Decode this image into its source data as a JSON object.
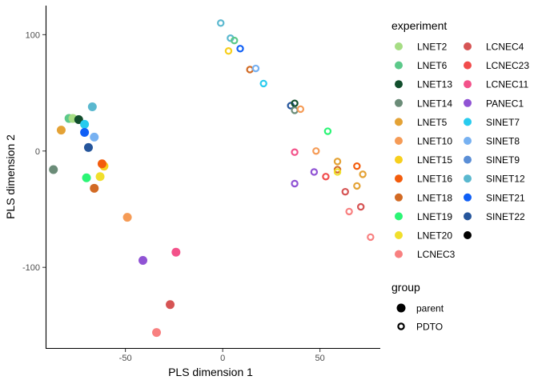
{
  "chart_data": {
    "type": "scatter",
    "title": "",
    "xlabel": "PLS dimension 1",
    "ylabel": "PLS dimension 2",
    "xlim": [
      -91,
      81
    ],
    "ylim": [
      -170,
      125
    ],
    "xticks": [
      -50,
      0,
      50
    ],
    "yticks": [
      100,
      0,
      -100
    ],
    "grid": false,
    "legend_position": "right",
    "legend": {
      "experiment_title": "experiment",
      "group_title": "group",
      "experiments": [
        {
          "name": "LNET2",
          "color": "#a6dd84"
        },
        {
          "name": "LNET6",
          "color": "#5cc98a"
        },
        {
          "name": "LNET13",
          "color": "#114e2c"
        },
        {
          "name": "LNET14",
          "color": "#6b8c78"
        },
        {
          "name": "LNET5",
          "color": "#e4a235"
        },
        {
          "name": "LNET10",
          "color": "#f59b56"
        },
        {
          "name": "LNET15",
          "color": "#f7cf1d"
        },
        {
          "name": "LNET16",
          "color": "#f35c0c"
        },
        {
          "name": "LNET18",
          "color": "#d26a24"
        },
        {
          "name": "LNET19",
          "color": "#2bf575"
        },
        {
          "name": "LNET20",
          "color": "#f1df2c"
        },
        {
          "name": "LCNEC3",
          "color": "#f88080"
        },
        {
          "name": "LCNEC4",
          "color": "#d65454"
        },
        {
          "name": "LCNEC23",
          "color": "#f14c4c"
        },
        {
          "name": "LCNEC11",
          "color": "#f3528a"
        },
        {
          "name": "PANEC1",
          "color": "#9053d4"
        },
        {
          "name": "SINET7",
          "color": "#28cbee"
        },
        {
          "name": "SINET8",
          "color": "#77b1f1"
        },
        {
          "name": "SINET9",
          "color": "#5a8ed6"
        },
        {
          "name": "SINET12",
          "color": "#5ab8cf"
        },
        {
          "name": "SINET21",
          "color": "#0f5ff6"
        },
        {
          "name": "SINET22",
          "color": "#25559b"
        },
        {
          "name": "",
          "color": "#000000"
        }
      ],
      "groups": [
        {
          "name": "parent",
          "shape": "filled"
        },
        {
          "name": "PDTO",
          "shape": "open"
        }
      ]
    },
    "points": [
      {
        "x": -87,
        "y": -16,
        "experiment": "LNET14",
        "group": "parent"
      },
      {
        "x": -83,
        "y": 18,
        "experiment": "LNET5",
        "group": "parent"
      },
      {
        "x": -79,
        "y": 28,
        "experiment": "LNET6",
        "group": "parent"
      },
      {
        "x": -77,
        "y": 28,
        "experiment": "LNET2",
        "group": "parent"
      },
      {
        "x": -74,
        "y": 27,
        "experiment": "LNET13",
        "group": "parent"
      },
      {
        "x": -71,
        "y": 23,
        "experiment": "SINET7",
        "group": "parent"
      },
      {
        "x": -71,
        "y": 16,
        "experiment": "SINET21",
        "group": "parent"
      },
      {
        "x": -70,
        "y": -23,
        "experiment": "LNET19",
        "group": "parent"
      },
      {
        "x": -69,
        "y": 3,
        "experiment": "SINET22",
        "group": "parent"
      },
      {
        "x": -67,
        "y": 38,
        "experiment": "SINET12",
        "group": "parent"
      },
      {
        "x": -66,
        "y": 12,
        "experiment": "SINET8",
        "group": "parent"
      },
      {
        "x": -66,
        "y": -32,
        "experiment": "LNET18",
        "group": "parent"
      },
      {
        "x": -63,
        "y": -22,
        "experiment": "LNET20",
        "group": "parent"
      },
      {
        "x": -61,
        "y": -13,
        "experiment": "LNET15",
        "group": "parent"
      },
      {
        "x": -62,
        "y": -11,
        "experiment": "LNET16",
        "group": "parent"
      },
      {
        "x": -49,
        "y": -57,
        "experiment": "LNET10",
        "group": "parent"
      },
      {
        "x": -41,
        "y": -94,
        "experiment": "PANEC1",
        "group": "parent"
      },
      {
        "x": -27,
        "y": -132,
        "experiment": "LCNEC4",
        "group": "parent"
      },
      {
        "x": -24,
        "y": -87,
        "experiment": "LCNEC11",
        "group": "parent"
      },
      {
        "x": -34,
        "y": -156,
        "experiment": "LCNEC3",
        "group": "parent"
      },
      {
        "x": -1,
        "y": 110,
        "experiment": "SINET12",
        "group": "PDTO"
      },
      {
        "x": 4,
        "y": 97,
        "experiment": "SINET12",
        "group": "PDTO"
      },
      {
        "x": 6,
        "y": 95,
        "experiment": "LNET6",
        "group": "PDTO"
      },
      {
        "x": 9,
        "y": 88,
        "experiment": "SINET21",
        "group": "PDTO"
      },
      {
        "x": 3,
        "y": 86,
        "experiment": "LNET15",
        "group": "PDTO"
      },
      {
        "x": 14,
        "y": 70,
        "experiment": "LNET18",
        "group": "PDTO"
      },
      {
        "x": 17,
        "y": 71,
        "experiment": "SINET8",
        "group": "PDTO"
      },
      {
        "x": 21,
        "y": 58,
        "experiment": "SINET7",
        "group": "PDTO"
      },
      {
        "x": 35,
        "y": 39,
        "experiment": "SINET22",
        "group": "PDTO"
      },
      {
        "x": 37,
        "y": 41,
        "experiment": "LNET13",
        "group": "PDTO"
      },
      {
        "x": 37,
        "y": 35,
        "experiment": "LNET14",
        "group": "PDTO"
      },
      {
        "x": 40,
        "y": 36,
        "experiment": "LNET10",
        "group": "PDTO"
      },
      {
        "x": 54,
        "y": 17,
        "experiment": "LNET19",
        "group": "PDTO"
      },
      {
        "x": 37,
        "y": -1,
        "experiment": "LCNEC11",
        "group": "PDTO"
      },
      {
        "x": 48,
        "y": 0,
        "experiment": "LNET10",
        "group": "PDTO"
      },
      {
        "x": 59,
        "y": -9,
        "experiment": "LNET5",
        "group": "PDTO"
      },
      {
        "x": 59,
        "y": -16,
        "experiment": "LNET18",
        "group": "PDTO"
      },
      {
        "x": 59,
        "y": -18,
        "experiment": "LNET20",
        "group": "PDTO"
      },
      {
        "x": 47,
        "y": -18,
        "experiment": "PANEC1",
        "group": "PDTO"
      },
      {
        "x": 53,
        "y": -22,
        "experiment": "LCNEC23",
        "group": "PDTO"
      },
      {
        "x": 37,
        "y": -28,
        "experiment": "PANEC1",
        "group": "PDTO"
      },
      {
        "x": 69,
        "y": -13,
        "experiment": "LNET16",
        "group": "PDTO"
      },
      {
        "x": 72,
        "y": -20,
        "experiment": "LNET5",
        "group": "PDTO"
      },
      {
        "x": 69,
        "y": -30,
        "experiment": "LNET5",
        "group": "PDTO"
      },
      {
        "x": 63,
        "y": -35,
        "experiment": "LCNEC4",
        "group": "PDTO"
      },
      {
        "x": 71,
        "y": -48,
        "experiment": "LCNEC4",
        "group": "PDTO"
      },
      {
        "x": 65,
        "y": -52,
        "experiment": "LCNEC3",
        "group": "PDTO"
      },
      {
        "x": 76,
        "y": -74,
        "experiment": "LCNEC3",
        "group": "PDTO"
      }
    ]
  }
}
